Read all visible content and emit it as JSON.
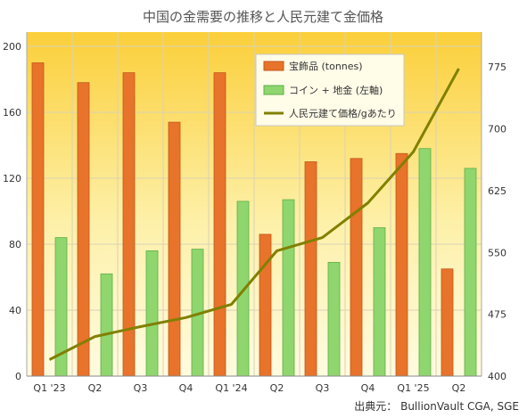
{
  "chart_data": {
    "type": "bar",
    "title": "中国の金需要の推移と人民元建て金価格",
    "source": "出典元： BullionVault CGA, SGE",
    "categories": [
      "Q1 '23",
      "Q2",
      "Q3",
      "Q4",
      "Q1 '24",
      "Q2",
      "Q3",
      "Q4",
      "Q1 '25",
      "Q2"
    ],
    "ylim_left": [
      0,
      200
    ],
    "yticks_left": [
      "0",
      "40",
      "80",
      "120",
      "160",
      "200"
    ],
    "ylim_right": [
      400,
      800
    ],
    "yticks_right": [
      "400",
      "475",
      "550",
      "625",
      "700",
      "775"
    ],
    "grid": true,
    "legend_position": "top-center",
    "series": [
      {
        "name": "宝飾品 (tonnes)",
        "type": "bar",
        "axis": "left",
        "color": "#e8732a",
        "values": [
          190,
          178,
          184,
          154,
          184,
          86,
          130,
          132,
          135,
          65
        ]
      },
      {
        "name": "コイン + 地金 (左軸)",
        "type": "bar",
        "axis": "left",
        "color": "#8fd66f",
        "values": [
          84,
          62,
          76,
          77,
          106,
          107,
          69,
          90,
          138,
          126
        ]
      },
      {
        "name": "人民元建て価格/gあたり",
        "type": "line",
        "axis": "right",
        "color": "#808000",
        "values": [
          420,
          448,
          460,
          471,
          487,
          552,
          568,
          610,
          672,
          773
        ]
      }
    ]
  }
}
